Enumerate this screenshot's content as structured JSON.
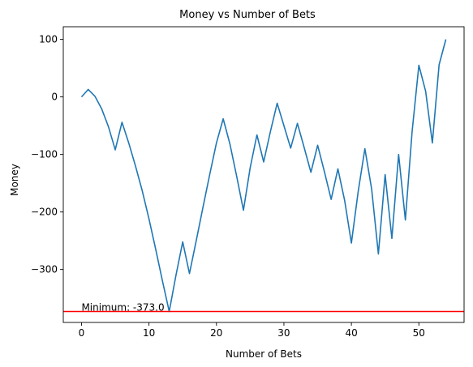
{
  "chart_data": {
    "type": "line",
    "title": "Money vs Number of Bets",
    "xlabel": "Number of Bets",
    "ylabel": "Money",
    "xlim": [
      -2.7,
      56.7
    ],
    "ylim": [
      -392,
      122
    ],
    "xticks": [
      0,
      10,
      20,
      30,
      40,
      50
    ],
    "yticks": [
      -300,
      -200,
      -100,
      0,
      100
    ],
    "grid": false,
    "series": [
      {
        "color": "#1f77b4",
        "x": [
          0,
          1,
          2,
          3,
          4,
          5,
          6,
          7,
          8,
          9,
          10,
          11,
          12,
          13,
          14,
          15,
          16,
          17,
          18,
          19,
          20,
          21,
          22,
          23,
          24,
          25,
          26,
          27,
          28,
          29,
          30,
          31,
          32,
          33,
          34,
          35,
          36,
          37,
          38,
          39,
          40,
          41,
          42,
          43,
          44,
          45,
          46,
          47,
          48,
          49,
          50,
          51,
          52,
          53,
          54
        ],
        "y": [
          0,
          13,
          1,
          -21,
          -52,
          -92,
          -44,
          -80,
          -120,
          -163,
          -212,
          -265,
          -320,
          -373,
          -310,
          -252,
          -307,
          -250,
          -192,
          -135,
          -80,
          -38,
          -82,
          -138,
          -197,
          -123,
          -66,
          -113,
          -60,
          -11,
          -50,
          -89,
          -46,
          -88,
          -131,
          -84,
          -130,
          -178,
          -125,
          -180,
          -254,
          -165,
          -90,
          -160,
          -273,
          -135,
          -246,
          -100,
          -214,
          -60,
          55,
          10,
          -80,
          56,
          100
        ]
      }
    ],
    "hlines": [
      {
        "y": -373,
        "color": "#ff0000"
      }
    ],
    "annotations": [
      {
        "text": "Minimum: -373.0",
        "x": 0,
        "y": -373
      }
    ]
  }
}
